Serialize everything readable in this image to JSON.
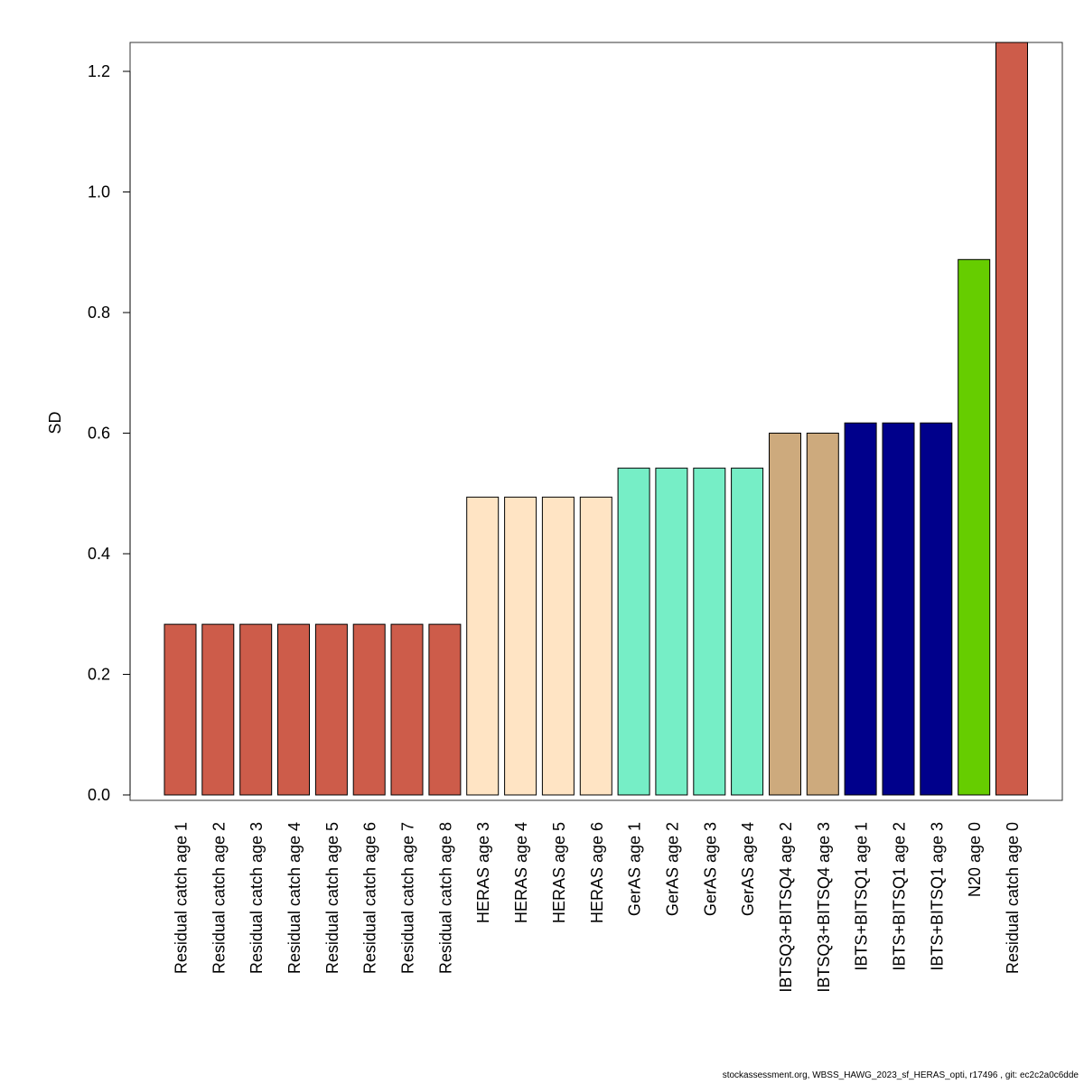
{
  "chart_data": {
    "type": "bar",
    "title": "",
    "xlabel": "",
    "ylabel": "SD",
    "ylim": [
      0,
      1.25
    ],
    "yticks": [
      0.0,
      0.2,
      0.4,
      0.6,
      0.8,
      1.0,
      1.2
    ],
    "ytick_labels": [
      "0.0",
      "0.2",
      "0.4",
      "0.6",
      "0.8",
      "1.0",
      "1.2"
    ],
    "grid": false,
    "categories": [
      "Residual catch age 1",
      "Residual catch age 2",
      "Residual catch age 3",
      "Residual catch age 4",
      "Residual catch age 5",
      "Residual catch age 6",
      "Residual catch age 7",
      "Residual catch age 8",
      "HERAS age 3",
      "HERAS age 4",
      "HERAS age 5",
      "HERAS age 6",
      "GerAS age 1",
      "GerAS age 2",
      "GerAS age 3",
      "GerAS age 4",
      "IBTSQ3+BITSQ4 age 2",
      "IBTSQ3+BITSQ4 age 3",
      "IBTS+BITSQ1 age 1",
      "IBTS+BITSQ1 age 2",
      "IBTS+BITSQ1 age 3",
      "N20 age 0",
      "Residual catch age 0"
    ],
    "values": [
      0.283,
      0.283,
      0.283,
      0.283,
      0.283,
      0.283,
      0.283,
      0.283,
      0.494,
      0.494,
      0.494,
      0.494,
      0.542,
      0.542,
      0.542,
      0.542,
      0.6,
      0.6,
      0.617,
      0.617,
      0.617,
      0.888,
      1.25
    ],
    "colors": [
      "#CD5C4A",
      "#CD5C4A",
      "#CD5C4A",
      "#CD5C4A",
      "#CD5C4A",
      "#CD5C4A",
      "#CD5C4A",
      "#CD5C4A",
      "#FFE4C4",
      "#FFE4C4",
      "#FFE4C4",
      "#FFE4C4",
      "#76EEC6",
      "#76EEC6",
      "#76EEC6",
      "#76EEC6",
      "#CDAA7D",
      "#CDAA7D",
      "#00008B",
      "#00008B",
      "#00008B",
      "#66CD00",
      "#CD5C4A"
    ]
  },
  "footer": "stockassessment.org, WBSS_HAWG_2023_sf_HERAS_opti, r17496 , git: ec2c2a0c6dde"
}
